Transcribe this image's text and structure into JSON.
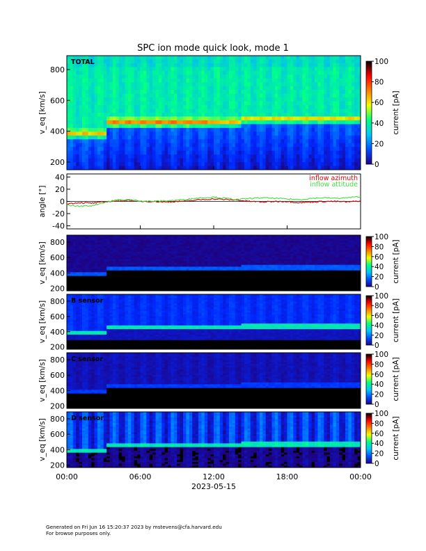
{
  "chart_data": {
    "title": "SPC ion mode quick look, mode 1",
    "x_axis": {
      "ticks": [
        "00:00",
        "06:00",
        "12:00",
        "18:00",
        "00:00"
      ],
      "tick_hours": [
        0,
        6,
        12,
        18,
        24
      ],
      "date_label": "2023-05-15",
      "range_hours": [
        0,
        24
      ]
    },
    "colorbar": {
      "label": "current [pA]",
      "ticks": [
        0,
        20,
        40,
        60,
        80,
        100
      ],
      "range": [
        0,
        100
      ],
      "colors": [
        "#20008a",
        "#0050ff",
        "#00c8ff",
        "#00ff80",
        "#f0ff00",
        "#ff8000",
        "#ff0000",
        "#000000"
      ]
    },
    "panels": [
      {
        "type": "heatmap",
        "label": "TOTAL",
        "ylabel": "v_eq [km/s]",
        "ylim": [
          150,
          890
        ],
        "yticks": [
          200,
          400,
          600,
          800
        ],
        "background_level": "high",
        "beam_velocity": [
          {
            "hour": 0,
            "v": 375
          },
          {
            "hour": 3.2,
            "v": 375
          },
          {
            "hour": 3.2,
            "v": 450
          },
          {
            "hour": 14,
            "v": 450
          },
          {
            "hour": 14.5,
            "v": 470
          },
          {
            "hour": 24,
            "v": 470
          }
        ]
      },
      {
        "type": "line",
        "ylabel": "angle [°]",
        "ylim": [
          -45,
          45
        ],
        "yticks": [
          -40,
          -20,
          0,
          20,
          40
        ],
        "series": [
          {
            "name": "inflow azimuth",
            "color": "#e00000",
            "x": [
              0,
              1,
              2,
              3,
              4,
              5,
              6,
              7,
              8,
              9,
              10,
              11,
              12,
              13,
              14,
              15,
              16,
              17,
              18,
              19,
              20,
              21,
              22,
              23,
              24
            ],
            "y": [
              -4,
              -2,
              -3,
              -1,
              1,
              2,
              0,
              0,
              -1,
              0,
              1,
              3,
              4,
              3,
              2,
              0,
              -1,
              0,
              0,
              -2,
              -1,
              0,
              0,
              -1,
              1
            ]
          },
          {
            "name": "inflow attitude",
            "color": "#40e040",
            "x": [
              0,
              1,
              2,
              3,
              4,
              5,
              6,
              7,
              8,
              9,
              10,
              11,
              12,
              13,
              14,
              15,
              16,
              17,
              18,
              19,
              20,
              21,
              22,
              23,
              24
            ],
            "y": [
              -6,
              -8,
              -7,
              -2,
              2,
              3,
              1,
              0,
              1,
              2,
              4,
              6,
              7,
              5,
              3,
              5,
              6,
              5,
              4,
              3,
              5,
              6,
              5,
              6,
              8
            ]
          }
        ]
      },
      {
        "type": "heatmap",
        "label": "",
        "ylabel": "v_eq [km/s]",
        "ylim": [
          170,
          890
        ],
        "yticks": [
          200,
          400,
          600,
          800
        ],
        "background_level": "dark"
      },
      {
        "type": "heatmap",
        "label": "B sensor",
        "ylabel": "v_eq [km/s]",
        "ylim": [
          170,
          890
        ],
        "yticks": [
          200,
          400,
          600,
          800
        ],
        "background_level": "blue"
      },
      {
        "type": "heatmap",
        "label": "C sensor",
        "ylabel": "v_eq [km/s]",
        "ylim": [
          170,
          890
        ],
        "yticks": [
          200,
          400,
          600,
          800
        ],
        "background_level": "purple"
      },
      {
        "type": "heatmap",
        "label": "D sensor",
        "ylabel": "v_eq [km/s]",
        "ylim": [
          170,
          890
        ],
        "yticks": [
          200,
          400,
          600,
          800
        ],
        "background_level": "striped"
      }
    ]
  },
  "footer": {
    "line1": "Generated on Fri Jun 16 15:20:37 2023 by mstevens@cfa.harvard.edu",
    "line2": "For browse purposes only."
  }
}
